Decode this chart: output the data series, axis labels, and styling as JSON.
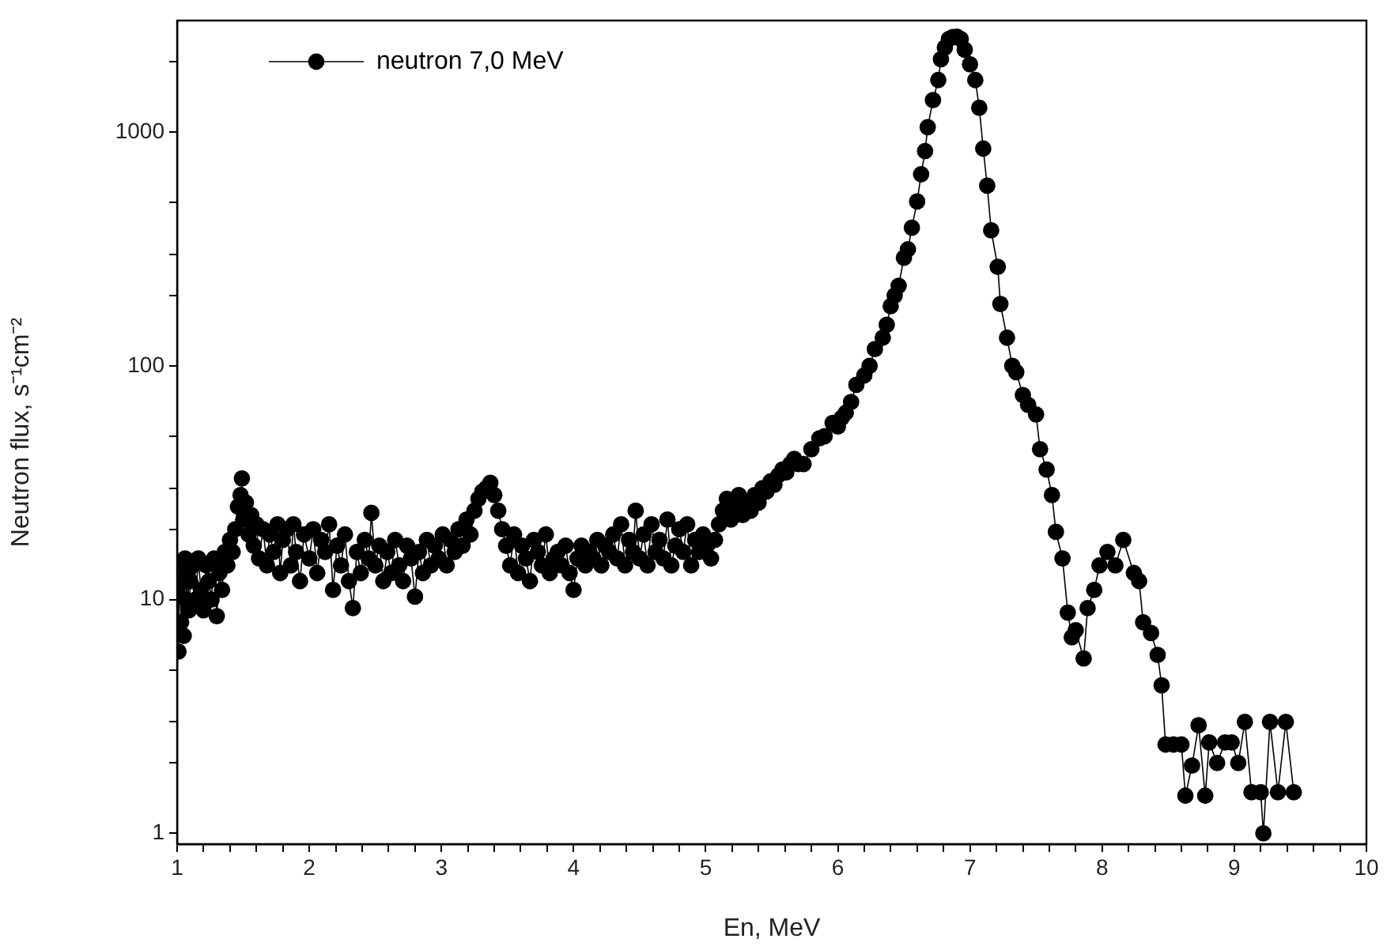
{
  "chart_data": {
    "type": "line",
    "xlabel": "En, MeV",
    "ylabel": "Neutron flux, s⁻¹cm⁻²",
    "log": "y",
    "grid": false,
    "legend": "top left",
    "marker": "circle",
    "line_style": "solid",
    "xlim": [
      1,
      10
    ],
    "ylim": [
      0.9,
      3000
    ],
    "xticks": [
      1,
      {
        "value": 1.2,
        "label": null
      },
      {
        "value": 1.4,
        "label": null
      },
      {
        "value": 1.6,
        "label": null
      },
      {
        "value": 1.8,
        "label": null
      },
      2,
      {
        "value": 2.2,
        "label": null
      },
      {
        "value": 2.4,
        "label": null
      },
      {
        "value": 2.6,
        "label": null
      },
      {
        "value": 2.8,
        "label": null
      },
      3,
      {
        "value": 3.2,
        "label": null
      },
      {
        "value": 3.4,
        "label": null
      },
      {
        "value": 3.6,
        "label": null
      },
      {
        "value": 3.8,
        "label": null
      },
      4,
      {
        "value": 4.2,
        "label": null
      },
      {
        "value": 4.4,
        "label": null
      },
      {
        "value": 4.6,
        "label": null
      },
      {
        "value": 4.8,
        "label": null
      },
      5,
      {
        "value": 5.2,
        "label": null
      },
      {
        "value": 5.4,
        "label": null
      },
      {
        "value": 5.6,
        "label": null
      },
      {
        "value": 5.8,
        "label": null
      },
      6,
      {
        "value": 6.2,
        "label": null
      },
      {
        "value": 6.4,
        "label": null
      },
      {
        "value": 6.6,
        "label": null
      },
      {
        "value": 6.8,
        "label": null
      },
      7,
      {
        "value": 7.2,
        "label": null
      },
      {
        "value": 7.4,
        "label": null
      },
      {
        "value": 7.6,
        "label": null
      },
      {
        "value": 7.8,
        "label": null
      },
      8,
      {
        "value": 8.2,
        "label": null
      },
      {
        "value": 8.4,
        "label": null
      },
      {
        "value": 8.6,
        "label": null
      },
      {
        "value": 8.8,
        "label": null
      },
      9,
      {
        "value": 9.2,
        "label": null
      },
      {
        "value": 9.4,
        "label": null
      },
      {
        "value": 9.6,
        "label": null
      },
      {
        "value": 9.8,
        "label": null
      },
      10
    ],
    "yticks": [
      1,
      {
        "value": 2,
        "label": null
      },
      {
        "value": 3,
        "label": null
      },
      {
        "value": 5,
        "label": null
      },
      10,
      {
        "value": 20,
        "label": null
      },
      {
        "value": 30,
        "label": null
      },
      {
        "value": 50,
        "label": null
      },
      100,
      {
        "value": 200,
        "label": null
      },
      {
        "value": 300,
        "label": null
      },
      {
        "value": 500,
        "label": null
      },
      1000,
      {
        "value": 2000,
        "label": null
      }
    ],
    "series": [
      {
        "name": "neutron 7,0 MeV",
        "color": "#000000",
        "x": [
          1.0,
          1.01,
          1.02,
          1.03,
          1.04,
          1.05,
          1.06,
          1.07,
          1.08,
          1.09,
          1.1,
          1.12,
          1.14,
          1.16,
          1.18,
          1.2,
          1.22,
          1.24,
          1.26,
          1.28,
          1.3,
          1.32,
          1.34,
          1.36,
          1.38,
          1.4,
          1.42,
          1.44,
          1.46,
          1.48,
          1.49,
          1.5,
          1.52,
          1.54,
          1.56,
          1.58,
          1.6,
          1.62,
          1.65,
          1.68,
          1.7,
          1.73,
          1.76,
          1.78,
          1.8,
          1.83,
          1.86,
          1.88,
          1.9,
          1.93,
          1.96,
          2.0,
          2.03,
          2.06,
          2.09,
          2.12,
          2.15,
          2.18,
          2.21,
          2.24,
          2.27,
          2.3,
          2.33,
          2.36,
          2.39,
          2.42,
          2.45,
          2.47,
          2.5,
          2.53,
          2.56,
          2.59,
          2.62,
          2.65,
          2.68,
          2.71,
          2.74,
          2.77,
          2.8,
          2.83,
          2.86,
          2.89,
          2.92,
          2.95,
          2.98,
          3.01,
          3.04,
          3.07,
          3.1,
          3.13,
          3.16,
          3.19,
          3.22,
          3.25,
          3.28,
          3.31,
          3.34,
          3.37,
          3.4,
          3.43,
          3.46,
          3.49,
          3.52,
          3.55,
          3.58,
          3.61,
          3.64,
          3.67,
          3.7,
          3.73,
          3.76,
          3.79,
          3.82,
          3.85,
          3.88,
          3.91,
          3.94,
          3.97,
          4.0,
          4.03,
          4.06,
          4.09,
          4.12,
          4.15,
          4.18,
          4.21,
          4.24,
          4.27,
          4.3,
          4.33,
          4.36,
          4.39,
          4.42,
          4.45,
          4.47,
          4.5,
          4.53,
          4.56,
          4.59,
          4.62,
          4.65,
          4.68,
          4.71,
          4.74,
          4.77,
          4.8,
          4.83,
          4.86,
          4.89,
          4.92,
          4.95,
          4.98,
          5.01,
          5.04,
          5.07,
          5.1,
          5.13,
          5.16,
          5.19,
          5.22,
          5.25,
          5.28,
          5.31,
          5.34,
          5.37,
          5.4,
          5.43,
          5.46,
          5.49,
          5.52,
          5.55,
          5.58,
          5.61,
          5.64,
          5.67,
          5.7,
          5.74,
          5.8,
          5.86,
          5.9,
          5.96,
          6.0,
          6.03,
          6.06,
          6.1,
          6.14,
          6.2,
          6.24,
          6.28,
          6.34,
          6.37,
          6.4,
          6.43,
          6.46,
          6.5,
          6.53,
          6.56,
          6.6,
          6.63,
          6.66,
          6.68,
          6.72,
          6.76,
          6.78,
          6.81,
          6.84,
          6.87,
          6.9,
          6.93,
          6.96,
          7.0,
          7.04,
          7.07,
          7.1,
          7.13,
          7.16,
          7.21,
          7.23,
          7.28,
          7.32,
          7.35,
          7.4,
          7.44,
          7.5,
          7.53,
          7.58,
          7.62,
          7.65,
          7.7,
          7.74,
          7.77,
          7.8,
          7.86,
          7.89,
          7.94,
          7.98,
          8.04,
          8.1,
          8.16,
          8.24,
          8.28,
          8.31,
          8.37,
          8.42,
          8.45,
          8.48,
          8.54,
          8.6,
          8.63,
          8.68,
          8.73,
          8.78,
          8.81,
          8.87,
          8.93,
          8.98,
          9.03,
          9.08,
          9.13,
          9.2,
          9.22,
          9.27,
          9.33,
          9.39,
          9.45
        ],
        "values": [
          11,
          6,
          14,
          8,
          12,
          7,
          15,
          10,
          13,
          9,
          12,
          14,
          10,
          15,
          11,
          9,
          14,
          12,
          10,
          15,
          8.5,
          13,
          11,
          16,
          14,
          18,
          16,
          20,
          25,
          28,
          33,
          22,
          26,
          19,
          23,
          17,
          21,
          15,
          20,
          14,
          19,
          16,
          21,
          13,
          18,
          20,
          14,
          21,
          16,
          12,
          19,
          15,
          20,
          13,
          18,
          16,
          21,
          11,
          17,
          14,
          19,
          12,
          9.2,
          16,
          13,
          18,
          15,
          23.5,
          14,
          17,
          12,
          16,
          13,
          18,
          14,
          12,
          17,
          15,
          10.3,
          16,
          13,
          18,
          14,
          17,
          15,
          19,
          14,
          18,
          16,
          20,
          17,
          22,
          19,
          24,
          27,
          29,
          30,
          31.6,
          28,
          24,
          20,
          17,
          14,
          19,
          13,
          17,
          15,
          12,
          18,
          16,
          14,
          19,
          13,
          15,
          16,
          14,
          17,
          13,
          11,
          15,
          17,
          14,
          16,
          15,
          18,
          14,
          17,
          16,
          19,
          15,
          21,
          14,
          18,
          16,
          24,
          15,
          19,
          14,
          21,
          16,
          18,
          15,
          22,
          14,
          17,
          20,
          16,
          21,
          14,
          18,
          16,
          19,
          17,
          15,
          18,
          21,
          24,
          27,
          22,
          25,
          28,
          23,
          26,
          24,
          28,
          26,
          30,
          29,
          32,
          31,
          34,
          36,
          35,
          38,
          40,
          38,
          38,
          44,
          49,
          50,
          57,
          55,
          60,
          63,
          70,
          83,
          91,
          100,
          118,
          132,
          150,
          180,
          200,
          220,
          290,
          315,
          390,
          505,
          660,
          830,
          1050,
          1370,
          1670,
          2050,
          2300,
          2500,
          2550,
          2560,
          2500,
          2250,
          1950,
          1670,
          1270,
          850,
          590,
          380,
          265,
          184,
          132,
          100,
          94,
          75,
          68,
          62,
          44,
          36,
          28,
          19.5,
          15,
          8.8,
          6.9,
          7.4,
          5.6,
          9.2,
          11,
          14,
          16,
          14,
          18,
          13,
          12,
          8,
          7.2,
          5.8,
          4.3,
          2.4,
          2.4,
          2.4,
          1.45,
          1.95,
          2.9,
          1.45,
          2.45,
          2,
          2.45,
          2.45,
          2,
          3,
          1.5,
          1.5,
          1,
          3,
          1.5,
          3,
          1.5
        ]
      }
    ]
  }
}
